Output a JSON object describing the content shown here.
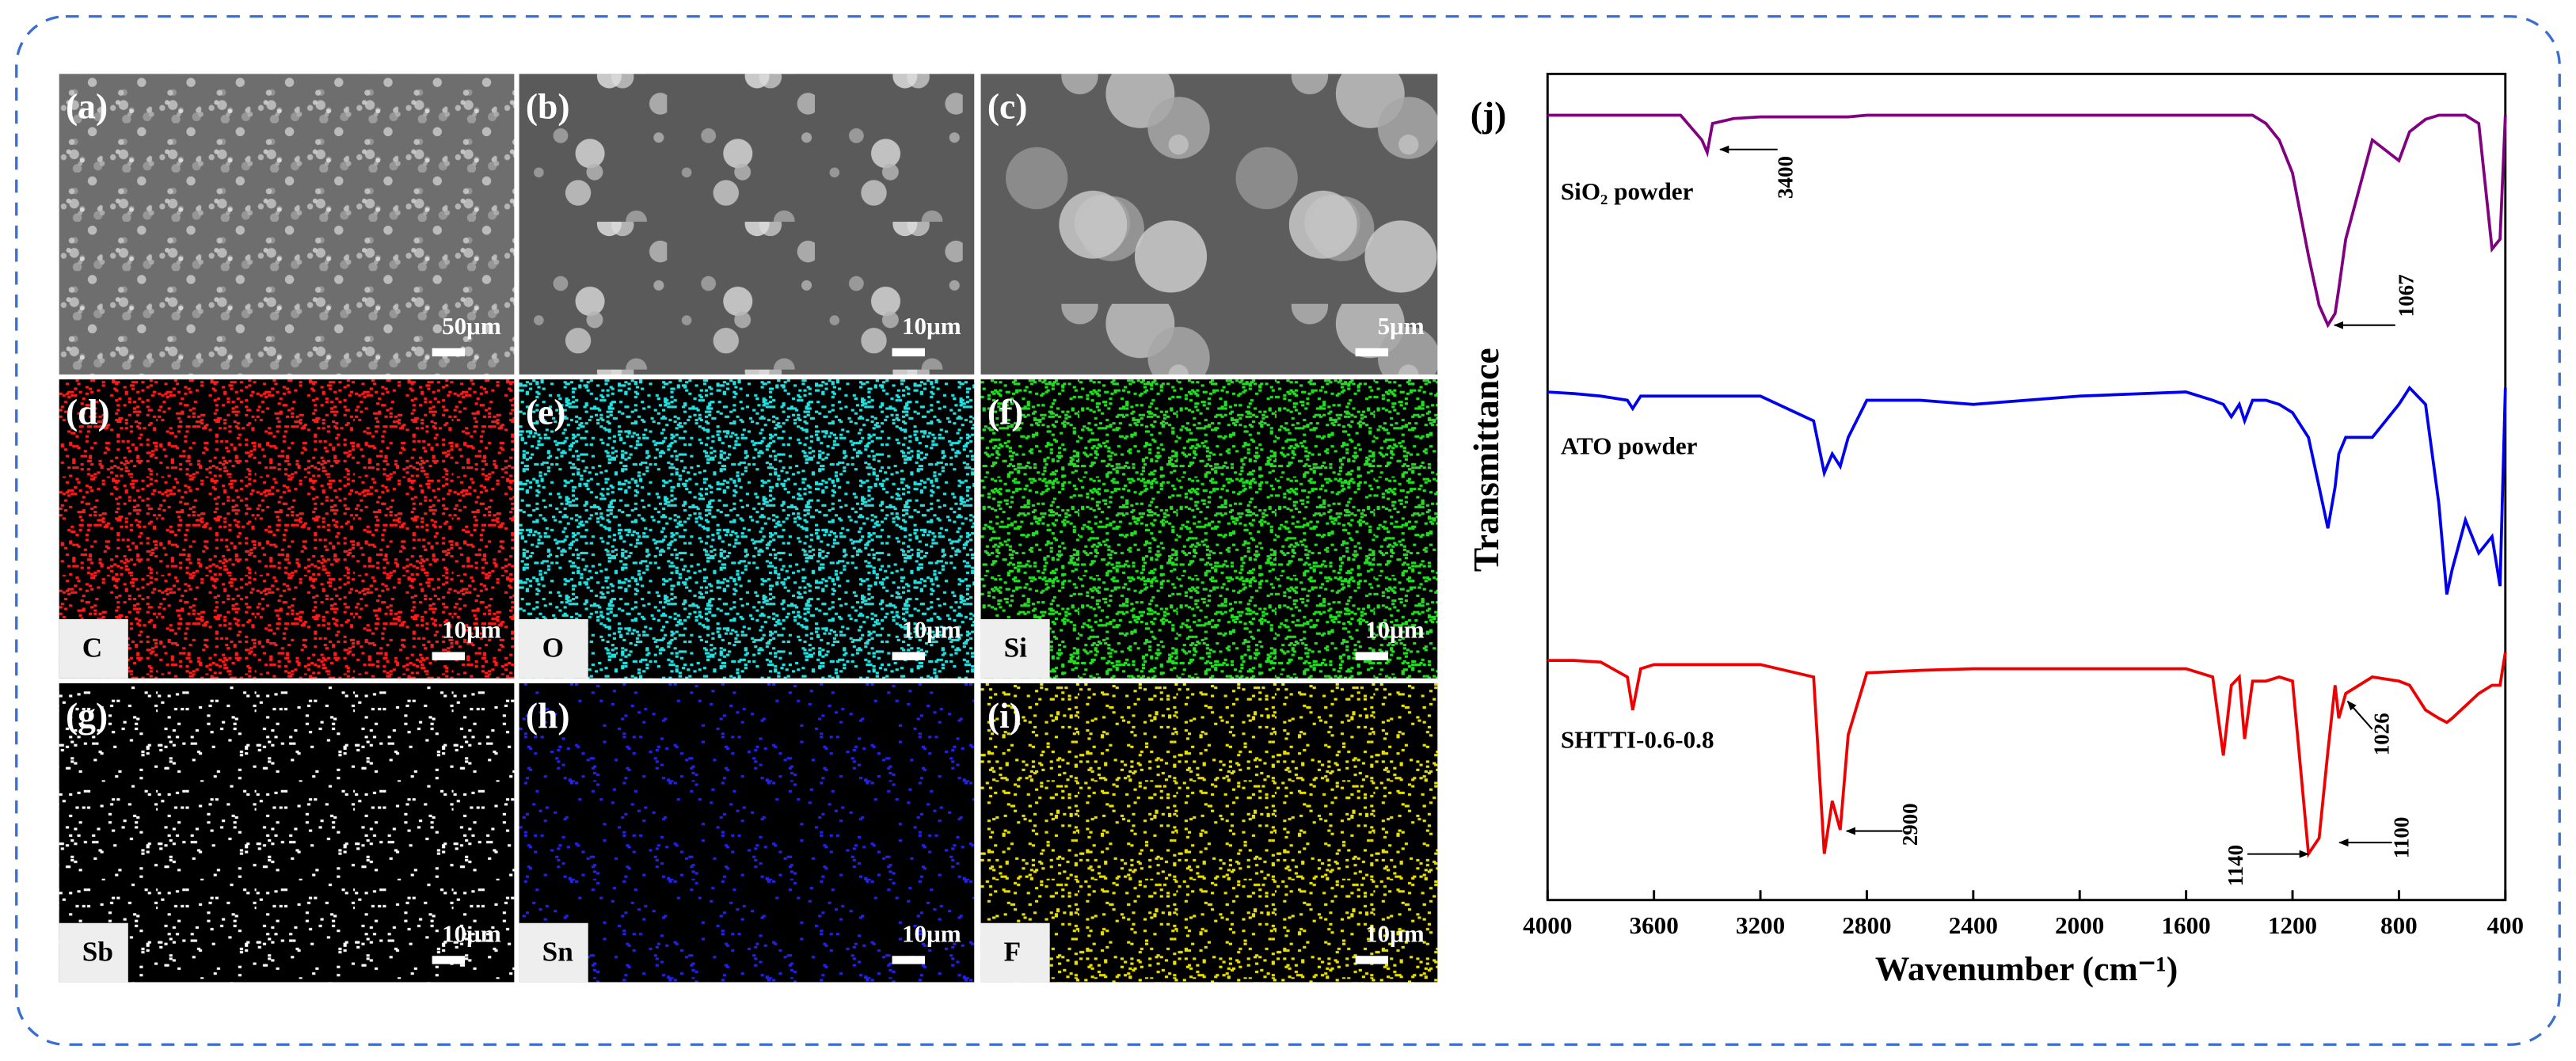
{
  "panels": [
    {
      "label": "(a)",
      "scale_bar": "50μm"
    },
    {
      "label": "(b)",
      "scale_bar": "10μm"
    },
    {
      "label": "(c)",
      "scale_bar": "5μm"
    },
    {
      "label": "(d)",
      "scale_bar": "10μm",
      "element": "C"
    },
    {
      "label": "(e)",
      "scale_bar": "10μm",
      "element": "O"
    },
    {
      "label": "(f)",
      "scale_bar": "10μm",
      "element": "Si"
    },
    {
      "label": "(g)",
      "scale_bar": "10μm",
      "element": "Sb"
    },
    {
      "label": "(h)",
      "scale_bar": "10μm",
      "element": "Sn"
    },
    {
      "label": "(i)",
      "scale_bar": "10μm",
      "element": "F"
    }
  ],
  "chart_data": {
    "type": "line",
    "label": "(j)",
    "xlabel": "Wavenumber (cm⁻¹)",
    "ylabel": "Transmittance",
    "xlim": [
      4000,
      400
    ],
    "xticks": [
      4000,
      3600,
      3200,
      2800,
      2400,
      2000,
      1600,
      1200,
      800,
      400
    ],
    "ylim": [
      0,
      100
    ],
    "x": [
      4000,
      3900,
      3800,
      3700,
      3680,
      3650,
      3600,
      3500,
      3420,
      3400,
      3380,
      3300,
      3200,
      3000,
      2960,
      2930,
      2900,
      2870,
      2800,
      2600,
      2400,
      2000,
      1600,
      1500,
      1460,
      1430,
      1400,
      1380,
      1350,
      1300,
      1250,
      1200,
      1140,
      1100,
      1067,
      1040,
      1026,
      1000,
      900,
      800,
      760,
      700,
      650,
      620,
      600,
      550,
      500,
      450,
      420,
      400
    ],
    "series": [
      {
        "name": "SiO₂ powder",
        "color": "#800080",
        "values": [
          95,
          95,
          95,
          95,
          95,
          95,
          95,
          95,
          92,
          90.5,
          94,
          94.6,
          94.8,
          94.8,
          94.8,
          94.8,
          94.8,
          94.8,
          95,
          95,
          95,
          95,
          95,
          95,
          95,
          95,
          95,
          95,
          95,
          94,
          92,
          88,
          78,
          72,
          69.6,
          71,
          74,
          80,
          92,
          89.5,
          93,
          94.5,
          95,
          95,
          95,
          95,
          94,
          78.8,
          80,
          95
        ]
      },
      {
        "name": "ATO powder",
        "color": "#0000ee",
        "values": [
          61.5,
          61.3,
          61,
          60.5,
          59.5,
          61,
          61,
          61,
          61,
          61,
          61,
          61,
          61,
          58,
          51.7,
          54,
          52.5,
          56,
          60.5,
          60.5,
          60,
          61,
          61.5,
          60.5,
          60,
          58.5,
          60,
          58,
          60.5,
          60.5,
          60,
          59,
          56,
          50,
          45,
          50,
          54,
          56,
          56,
          60,
          62,
          60,
          48,
          37,
          40,
          46,
          42,
          44,
          38,
          62
        ]
      },
      {
        "name": "SHTTI-0.6-0.8",
        "color": "#ee0000",
        "values": [
          29,
          29,
          28.8,
          27,
          23,
          28,
          28.5,
          28.5,
          28.5,
          28.5,
          28.5,
          28.5,
          28.5,
          27,
          5.6,
          12,
          8.5,
          20,
          27.5,
          27.8,
          28,
          28,
          28,
          27,
          17.5,
          26,
          27,
          19.5,
          26.5,
          26.5,
          27,
          26.5,
          5.6,
          7.5,
          18,
          26,
          22,
          25,
          27,
          26.5,
          26,
          23,
          22,
          21.5,
          22,
          23.5,
          25,
          26,
          26,
          30
        ]
      }
    ],
    "annotations": [
      "3400",
      "1067",
      "2900",
      "1140",
      "1100",
      "1026"
    ]
  }
}
